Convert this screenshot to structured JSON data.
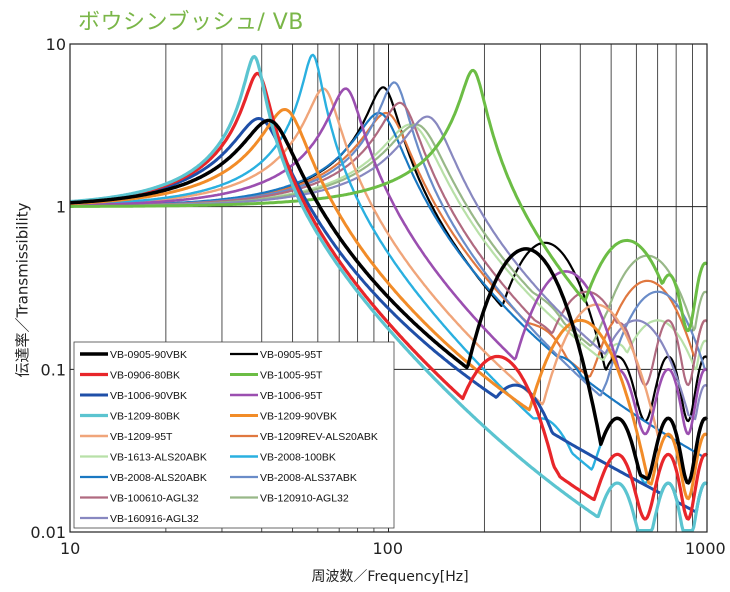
{
  "chart_data": {
    "type": "line",
    "title": "ボウシンブッシュ/ VB",
    "xlabel": "周波数／Frequency[Hz]",
    "ylabel": "伝達率／Transmissibility",
    "xscale": "log",
    "yscale": "log",
    "xlim": [
      10,
      1000
    ],
    "ylim": [
      0.01,
      10
    ],
    "xticks": [
      "10",
      "100",
      "1000"
    ],
    "yticks": [
      "0.01",
      "0.1",
      "1",
      "10"
    ],
    "grid": true,
    "legend_position": "bottom-left",
    "series": [
      {
        "name": "VB-0905-90VBK",
        "color": "#000000",
        "width": 3.5,
        "fn": 43,
        "peak": 3.2,
        "hump": [
          270,
          0.55
        ],
        "tail": 0.05
      },
      {
        "name": "VB-0905-95T",
        "color": "#000000",
        "width": 2.2,
        "fn": 97,
        "peak": 5.3,
        "hump": [
          310,
          0.6
        ],
        "tail": 0.12
      },
      {
        "name": "VB-0906-80BK",
        "color": "#e8262a",
        "width": 3.2,
        "fn": 39,
        "peak": 6.5,
        "hump": [
          220,
          0.12
        ],
        "tail": 0.03
      },
      {
        "name": "VB-1005-95T",
        "color": "#6cbd45",
        "width": 3.0,
        "fn": 185,
        "peak": 6.8,
        "hump": [
          560,
          0.62
        ],
        "tail": 0.45
      },
      {
        "name": "VB-1006-90VBK",
        "color": "#1f4fa8",
        "width": 3.0,
        "fn": 40,
        "peak": 3.3,
        "hump": [
          250,
          0.08
        ],
        "tail": 0.02
      },
      {
        "name": "VB-1006-95T",
        "color": "#9b4fb0",
        "width": 2.6,
        "fn": 74,
        "peak": 5.2,
        "hump": [
          360,
          0.4
        ],
        "tail": 0.1
      },
      {
        "name": "VB-1209-80BK",
        "color": "#5bc4d0",
        "width": 3.2,
        "fn": 38,
        "peak": 8.3,
        "hump": [
          130,
          0.03
        ],
        "tail": 0.02
      },
      {
        "name": "VB-1209-90VBK",
        "color": "#f28c28",
        "width": 3.0,
        "fn": 48,
        "peak": 3.8,
        "hump": [
          400,
          0.2
        ],
        "tail": 0.04
      },
      {
        "name": "VB-1209-95T",
        "color": "#f0a57a",
        "width": 2.4,
        "fn": 63,
        "peak": 5.2,
        "hump": [
          450,
          0.25
        ],
        "tail": 0.05
      },
      {
        "name": "VB-1209REV-ALS20ABK",
        "color": "#e07840",
        "width": 2.2,
        "fn": 100,
        "peak": 3.6,
        "hump": [
          650,
          0.35
        ],
        "tail": 0.2
      },
      {
        "name": "VB-1613-ALS20ABK",
        "color": "#b8e0a8",
        "width": 2.2,
        "fn": 120,
        "peak": 3.0,
        "hump": [
          700,
          0.2
        ],
        "tail": 0.15
      },
      {
        "name": "VB-2008-100BK",
        "color": "#2ab0e0",
        "width": 2.4,
        "fn": 58,
        "peak": 8.5,
        "hump": [
          300,
          0.05
        ],
        "tail": 0.05
      },
      {
        "name": "VB-2008-ALS20ABK",
        "color": "#1a78c2",
        "width": 2.2,
        "fn": 95,
        "peak": 3.6,
        "hump": [
          340,
          0.12
        ],
        "tail": 0.03
      },
      {
        "name": "VB-2008-ALS37ABK",
        "color": "#6a8cc8",
        "width": 2.2,
        "fn": 105,
        "peak": 5.7,
        "hump": [
          700,
          0.3
        ],
        "tail": 0.1
      },
      {
        "name": "VB-100610-AGL32",
        "color": "#b06a80",
        "width": 2.2,
        "fn": 110,
        "peak": 4.2,
        "hump": [
          420,
          0.3
        ],
        "tail": 0.2
      },
      {
        "name": "VB-120910-AGL32",
        "color": "#98b888",
        "width": 2.2,
        "fn": 125,
        "peak": 3.0,
        "hump": [
          650,
          0.5
        ],
        "tail": 0.3
      },
      {
        "name": "VB-160916-AGL32",
        "color": "#8888c0",
        "width": 2.2,
        "fn": 135,
        "peak": 3.4,
        "hump": [
          600,
          0.2
        ],
        "tail": 0.08
      }
    ]
  }
}
